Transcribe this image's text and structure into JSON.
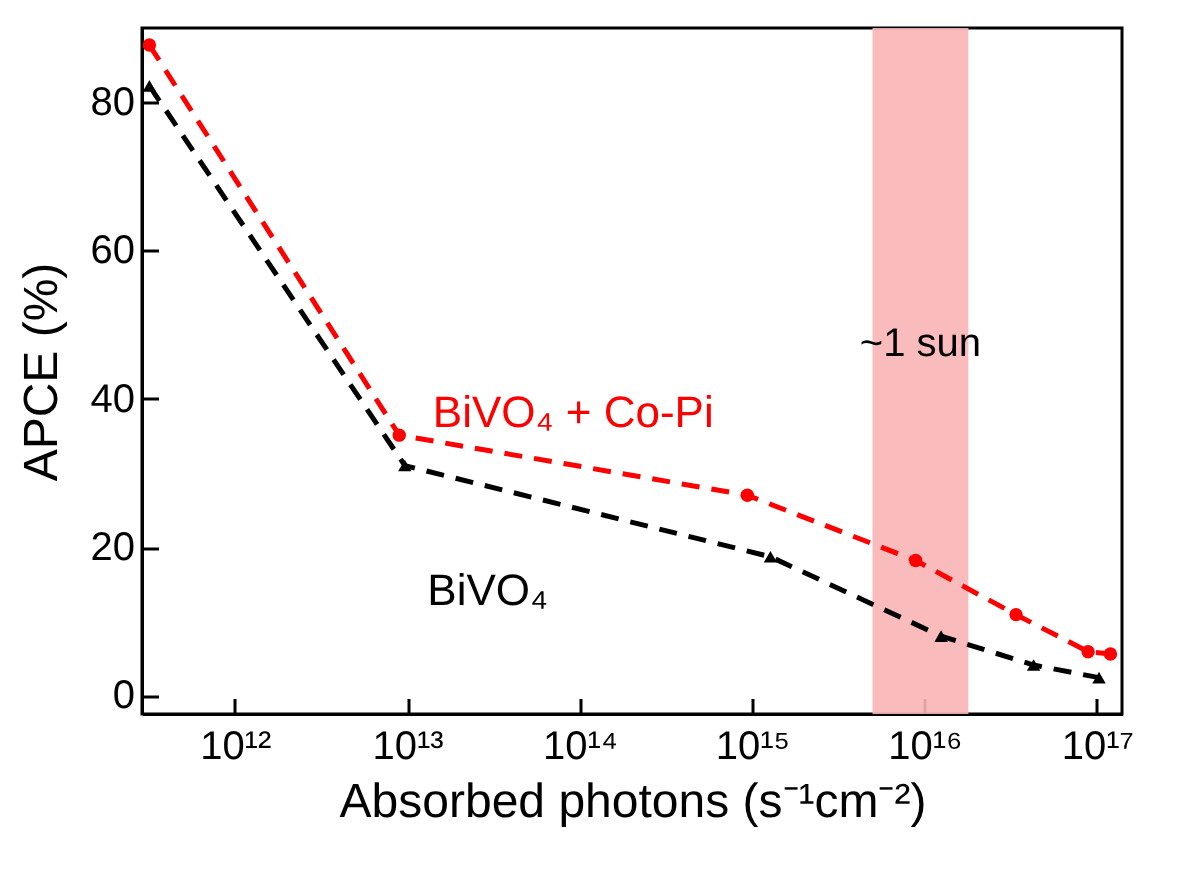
{
  "chart_data": {
    "type": "line",
    "xlabel": "Absorbed photons (s⁻¹cm⁻²)",
    "ylabel": "APCE (%)",
    "log": "x",
    "xlim": [
      290000000000.0,
      1.4e+17
    ],
    "ylim": [
      -2.5,
      90
    ],
    "xticks": [
      {
        "value": 1000000000000.0,
        "label": "10¹²"
      },
      {
        "value": 10000000000000.0,
        "label": "10¹³"
      },
      {
        "value": 100000000000000.0,
        "label": "10¹⁴"
      },
      {
        "value": 1000000000000000.0,
        "label": "10¹⁵"
      },
      {
        "value": 1e+16,
        "label": "10¹⁶"
      },
      {
        "value": 1e+17,
        "label": "10¹⁷"
      }
    ],
    "yticks": [
      0,
      20,
      40,
      60,
      80
    ],
    "line_style": "dashed",
    "series": [
      {
        "name": "BiVO₄ + Co-Pi",
        "color": "#ff0000",
        "marker": "circle",
        "x": [
          320000000000.0,
          9000000000000.0,
          940000000000000.0,
          8900000000000000.0,
          3.4e+16,
          8.9e+16,
          1.2e+17
        ],
        "values": [
          87.7,
          35.1,
          27.0,
          18.2,
          10.9,
          5.9,
          5.6
        ]
      },
      {
        "name": "BiVO₄",
        "color": "#000000",
        "marker": "triangle",
        "x": [
          320000000000.0,
          9700000000000.0,
          1280000000000000.0,
          1.25e+16,
          4.3e+16,
          1.03e+17
        ],
        "values": [
          82.2,
          31.0,
          18.7,
          8.0,
          4.1,
          2.4
        ]
      }
    ],
    "bands": [
      {
        "axis": "x",
        "from": 5000000000000000.0,
        "to": 1.8e+16,
        "color": "#f8b4b4",
        "label": "~1 sun"
      }
    ]
  }
}
